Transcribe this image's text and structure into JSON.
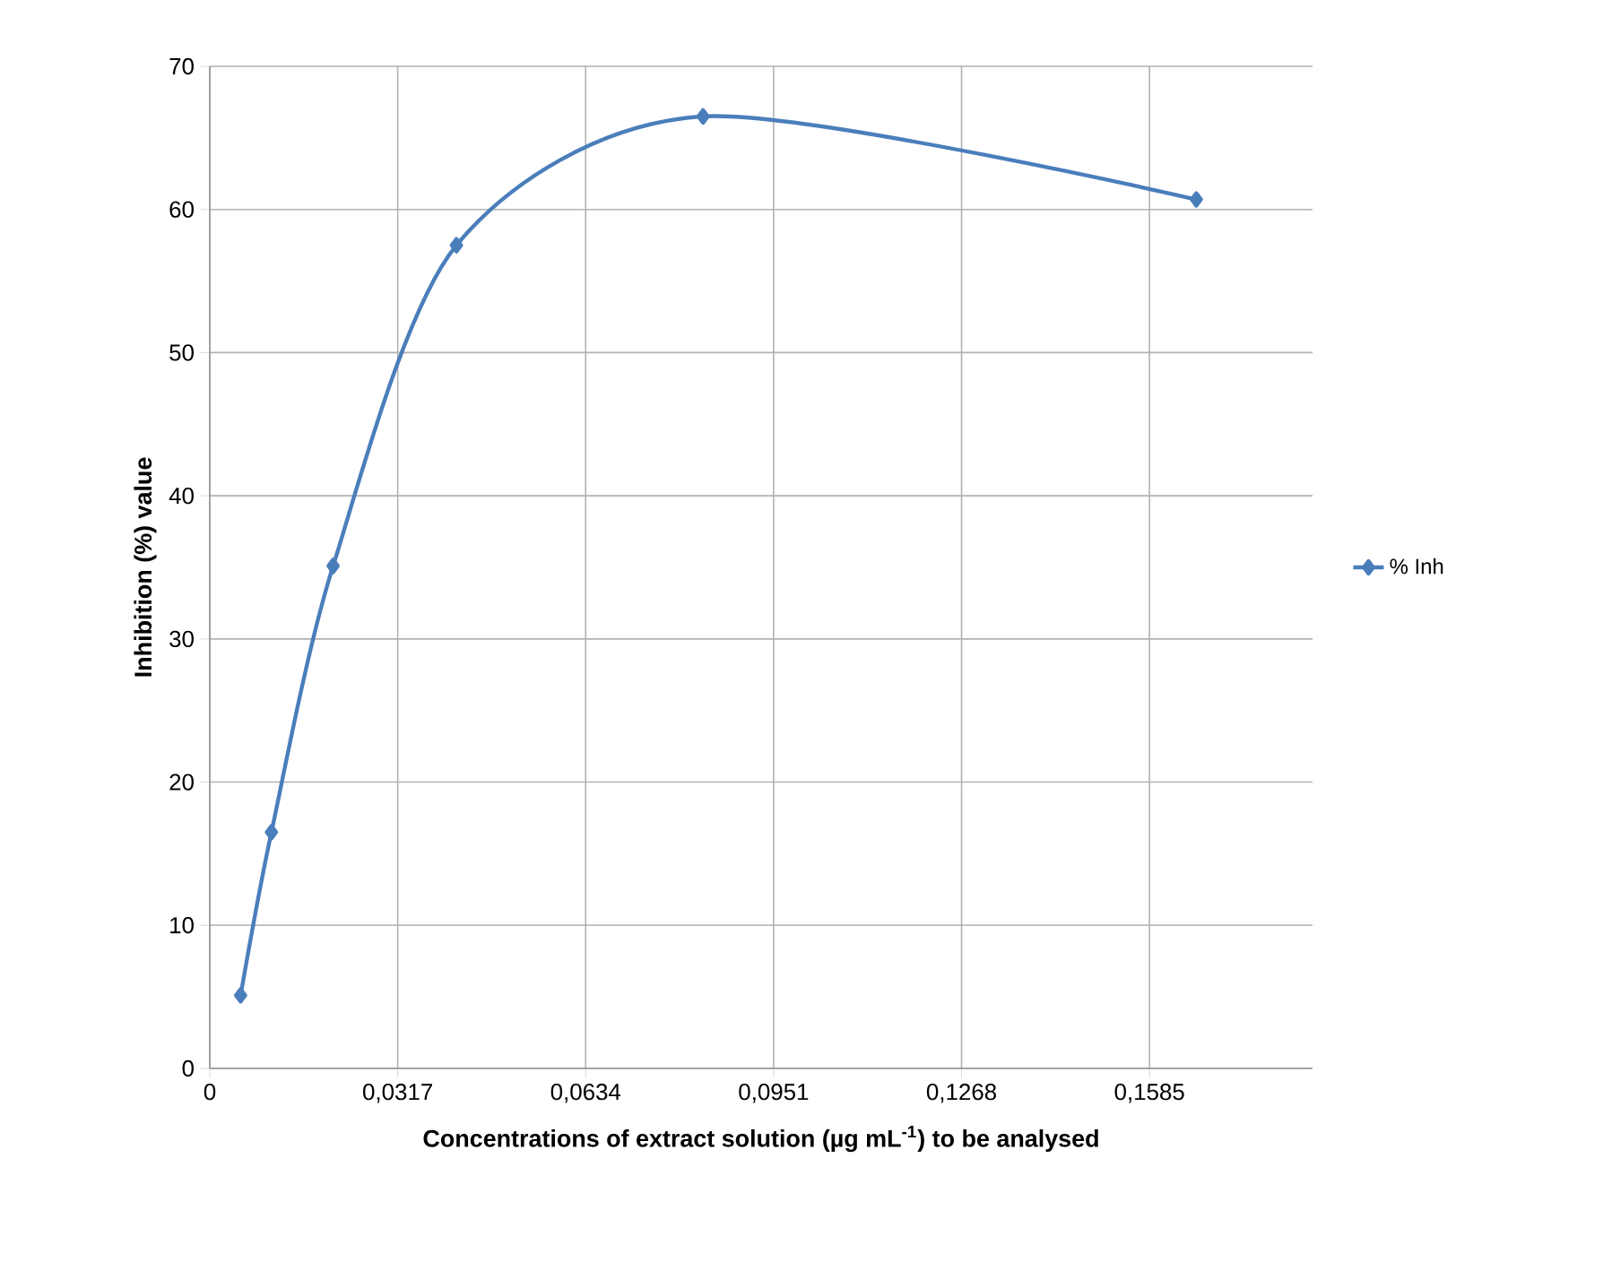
{
  "chart_data": {
    "type": "line",
    "xlabel": "Concentrations of extract solution (µg mL$^{-1}$)  to be analysed",
    "ylabel": "Inhibition (%) value",
    "x": [
      0.0052,
      0.0104,
      0.0208,
      0.0416,
      0.0832,
      0.1664
    ],
    "series": [
      {
        "name": "% Inh",
        "color": "#4a7ebb",
        "values": [
          5.1,
          16.5,
          35.1,
          57.5,
          66.5,
          60.7
        ]
      }
    ],
    "xlim": [
      0,
      0.186
    ],
    "xticks": [
      0,
      {
        "value": 0.0317,
        "label": "0,0317"
      },
      {
        "value": 0.0634,
        "label": "0,0634"
      },
      {
        "value": 0.0951,
        "label": "0,0951"
      },
      {
        "value": 0.1268,
        "label": "0,1268"
      },
      {
        "value": 0.1585,
        "label": "0,1585"
      }
    ],
    "ylim": [
      0,
      70
    ],
    "yticks": [
      0,
      10,
      20,
      30,
      40,
      50,
      60,
      70
    ],
    "grid": true,
    "legend": "right",
    "marker": "diamond",
    "line_style": "solid"
  }
}
